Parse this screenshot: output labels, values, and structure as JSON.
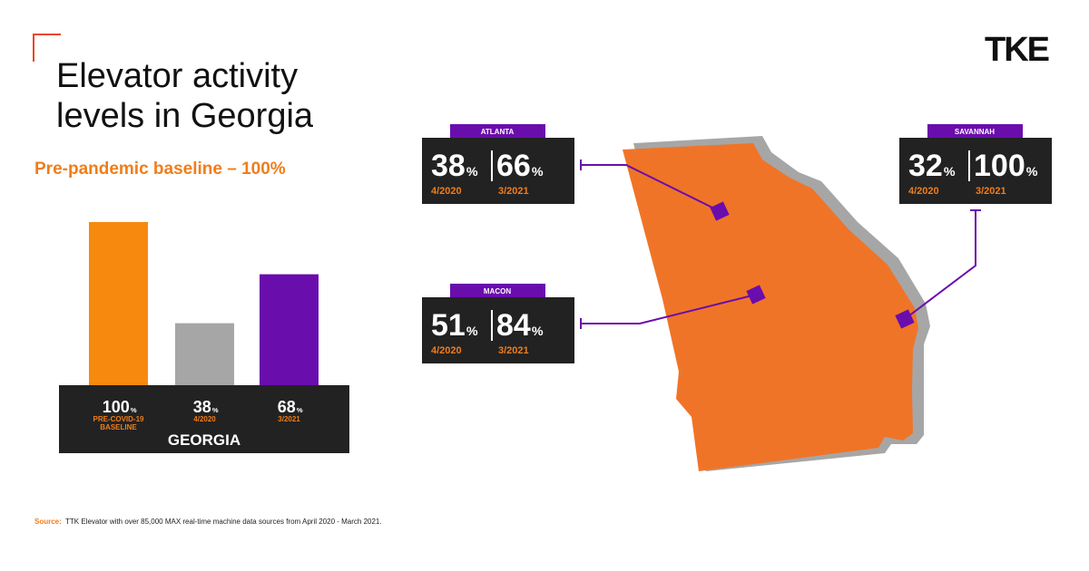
{
  "chart_data": {
    "type": "bar",
    "title": "Elevator activity levels in Georgia",
    "subtitle": "Pre-pandemic baseline – 100%",
    "x_label": "GEORGIA",
    "unit": "%",
    "categories": [
      "PRE-COVID-19 BASELINE",
      "4/2020",
      "3/2021"
    ],
    "values": [
      100,
      38,
      68
    ],
    "colors": [
      "#f7890f",
      "#a6a6a6",
      "#6a0dad"
    ],
    "ylim": [
      0,
      100
    ]
  },
  "map": {
    "region": "Georgia",
    "color": "#f07427",
    "cities": [
      {
        "name": "ATLANTA",
        "values": [
          38,
          66
        ],
        "periods": [
          "4/2020",
          "3/2021"
        ]
      },
      {
        "name": "MACON",
        "values": [
          51,
          84
        ],
        "periods": [
          "4/2020",
          "3/2021"
        ]
      },
      {
        "name": "SAVANNAH",
        "values": [
          32,
          100
        ],
        "periods": [
          "4/2020",
          "3/2021"
        ]
      }
    ]
  },
  "logo": "TKE",
  "source_label": "Source:",
  "source": "TTK Elevator with over 85,000 MAX real-time machine data sources from April 2020 - March 2021."
}
